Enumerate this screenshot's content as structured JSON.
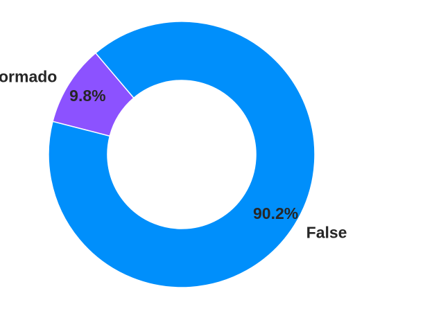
{
  "chart_data": {
    "type": "pie",
    "variant": "donut",
    "title": "",
    "slices": [
      {
        "label": "False",
        "value": 90.2,
        "pct_label": "90.2%",
        "color": "#008FFB"
      },
      {
        "label": "Não Informado",
        "value": 9.8,
        "pct_label": "9.8%",
        "color": "#8C52FF"
      }
    ],
    "legend": "none",
    "slice_border_color": "#ffffff"
  }
}
